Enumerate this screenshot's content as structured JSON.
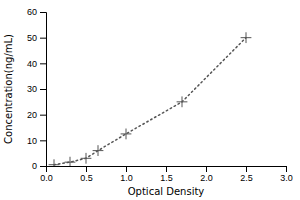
{
  "chart_data": {
    "type": "line",
    "x": [
      0.1,
      0.3,
      0.5,
      0.65,
      1.0,
      1.7,
      2.5
    ],
    "values": [
      0.5,
      1.5,
      3.0,
      6.0,
      12.5,
      25.0,
      50.0
    ],
    "xlabel": "Optical Density",
    "ylabel": "Concentration(ng/mL)",
    "xlim": [
      0,
      3
    ],
    "ylim": [
      0,
      60
    ],
    "xticks": [
      {
        "value": 0,
        "label": "0.0"
      },
      0.5,
      {
        "value": 1,
        "label": "1.0"
      },
      1.5,
      {
        "value": 2,
        "label": "2.0"
      },
      2.5,
      {
        "value": 3,
        "label": "3.0"
      }
    ],
    "yticks": [
      0,
      10,
      20,
      30,
      40,
      50,
      60
    ],
    "color": "#555555",
    "line_style": "dotted",
    "marker": "plus",
    "grid": false
  }
}
